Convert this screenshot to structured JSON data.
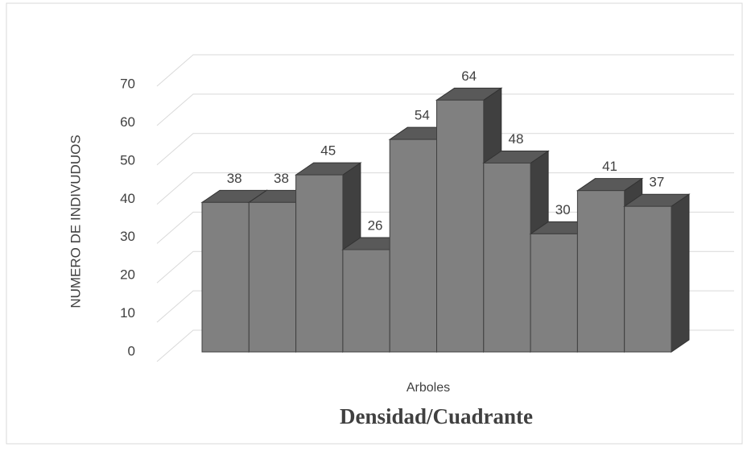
{
  "chart_data": {
    "type": "bar3d",
    "title": "Densidad/Cuadrante",
    "y_label": "NUMERO DE INDIVUDUOS",
    "categories": [
      "Arboles"
    ],
    "series": [
      {
        "color": "#808080",
        "values": [
          38
        ]
      },
      {
        "color": "#808080",
        "values": [
          38
        ]
      },
      {
        "color": "#808080",
        "values": [
          45
        ]
      },
      {
        "color": "#808080",
        "values": [
          26
        ]
      },
      {
        "color": "#808080",
        "values": [
          54
        ]
      },
      {
        "color": "#808080",
        "values": [
          64
        ]
      },
      {
        "color": "#808080",
        "values": [
          48
        ]
      },
      {
        "color": "#808080",
        "values": [
          30
        ]
      },
      {
        "color": "#808080",
        "values": [
          41
        ]
      },
      {
        "color": "#808080",
        "values": [
          37
        ]
      }
    ],
    "ylim": [
      0,
      70
    ],
    "yticks": [
      0,
      10,
      20,
      30,
      40,
      50,
      60,
      70
    ],
    "grid": true
  }
}
